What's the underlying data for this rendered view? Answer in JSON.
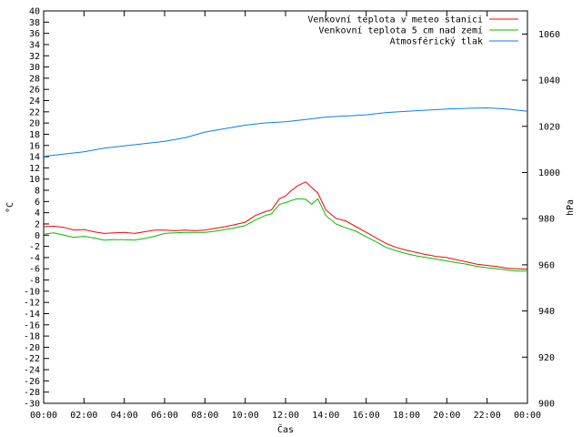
{
  "chart_data": {
    "type": "line",
    "xlabel": "Čas",
    "ylabel": "°C",
    "y2label": "hPa",
    "ylim": [
      -30,
      40
    ],
    "y2lim": [
      900,
      1070
    ],
    "xlim": [
      0,
      24
    ],
    "x_ticks": [
      "00:00",
      "02:00",
      "04:00",
      "06:00",
      "08:00",
      "10:00",
      "12:00",
      "14:00",
      "16:00",
      "18:00",
      "20:00",
      "22:00",
      "00:00"
    ],
    "y_ticks": [
      -30,
      -28,
      -26,
      -24,
      -22,
      -20,
      -18,
      -16,
      -14,
      -12,
      -10,
      -8,
      -6,
      -4,
      -2,
      0,
      2,
      4,
      6,
      8,
      10,
      12,
      14,
      16,
      18,
      20,
      22,
      24,
      26,
      28,
      30,
      32,
      34,
      36,
      38,
      40
    ],
    "y2_ticks": [
      900,
      920,
      940,
      960,
      980,
      1000,
      1020,
      1040,
      1060
    ],
    "legend_position": "top-right",
    "grid": false,
    "series": [
      {
        "name": "Venkovní teplota v meteo stanici",
        "color": "#ff0000",
        "axis": "y",
        "x": [
          0,
          0.5,
          1,
          1.5,
          2,
          2.5,
          3,
          3.5,
          4,
          4.5,
          5,
          5.5,
          6,
          6.5,
          7,
          7.5,
          8,
          8.5,
          9,
          9.5,
          10,
          10.5,
          11,
          11.3,
          11.7,
          12,
          12.3,
          12.6,
          13,
          13.3,
          13.6,
          14,
          14.5,
          15,
          15.5,
          16,
          16.5,
          17,
          17.5,
          18,
          18.5,
          19,
          19.5,
          20,
          20.5,
          21,
          21.5,
          22,
          22.5,
          23,
          23.5,
          24
        ],
        "y": [
          1.5,
          1.6,
          1.4,
          0.9,
          1.0,
          0.6,
          0.3,
          0.4,
          0.5,
          0.3,
          0.6,
          0.9,
          0.9,
          0.8,
          0.9,
          0.8,
          0.9,
          1.2,
          1.5,
          1.9,
          2.3,
          3.5,
          4.2,
          4.5,
          6.5,
          7.0,
          8.0,
          8.8,
          9.5,
          8.5,
          7.5,
          4.5,
          3.0,
          2.5,
          1.5,
          0.5,
          -0.5,
          -1.5,
          -2.2,
          -2.7,
          -3.1,
          -3.5,
          -3.8,
          -4.0,
          -4.4,
          -4.8,
          -5.2,
          -5.4,
          -5.6,
          -5.9,
          -6.0,
          -6.1
        ]
      },
      {
        "name": "Venkovní teplota 5 cm nad zemí",
        "color": "#00c000",
        "axis": "y",
        "x": [
          0,
          0.5,
          1,
          1.5,
          2,
          2.5,
          3,
          3.5,
          4,
          4.5,
          5,
          5.5,
          6,
          6.5,
          7,
          7.5,
          8,
          8.5,
          9,
          9.5,
          10,
          10.5,
          11,
          11.3,
          11.7,
          12,
          12.3,
          12.6,
          13,
          13.3,
          13.6,
          14,
          14.5,
          15,
          15.5,
          16,
          16.5,
          17,
          17.5,
          18,
          18.5,
          19,
          19.5,
          20,
          20.5,
          21,
          21.5,
          22,
          22.5,
          23,
          23.5,
          24
        ],
        "y": [
          0.2,
          0.4,
          0.0,
          -0.4,
          -0.2,
          -0.5,
          -0.9,
          -0.8,
          -0.8,
          -0.9,
          -0.6,
          -0.2,
          0.3,
          0.4,
          0.5,
          0.5,
          0.5,
          0.7,
          1.0,
          1.3,
          1.7,
          2.7,
          3.5,
          3.8,
          5.5,
          5.8,
          6.2,
          6.5,
          6.4,
          5.5,
          6.5,
          3.5,
          2.0,
          1.3,
          0.7,
          -0.3,
          -1.2,
          -2.2,
          -2.8,
          -3.3,
          -3.7,
          -4.0,
          -4.3,
          -4.6,
          -4.9,
          -5.2,
          -5.6,
          -5.8,
          -6.0,
          -6.2,
          -6.4,
          -6.4
        ]
      },
      {
        "name": "Atmosférický tlak",
        "color": "#0080ff",
        "axis": "y2",
        "x": [
          0,
          1,
          2,
          3,
          4,
          5,
          6,
          7,
          8,
          9,
          10,
          11,
          12,
          13,
          14,
          15,
          16,
          17,
          18,
          19,
          20,
          21,
          22,
          23,
          24
        ],
        "y": [
          1007,
          1008,
          1009,
          1010.5,
          1011.5,
          1012.5,
          1013.5,
          1015,
          1017.5,
          1019,
          1020.5,
          1021.5,
          1022,
          1023,
          1024,
          1024.5,
          1025,
          1026,
          1026.5,
          1027,
          1027.5,
          1027.8,
          1028,
          1027.5,
          1026.5
        ]
      }
    ]
  }
}
